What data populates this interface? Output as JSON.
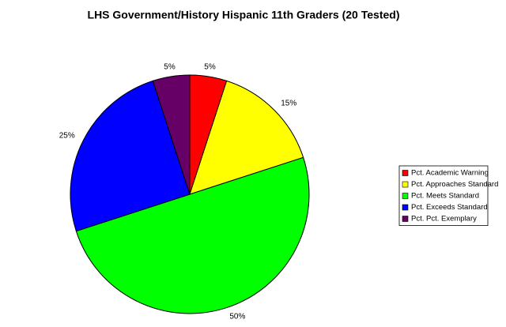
{
  "chart_data": {
    "type": "pie",
    "title": "LHS Government/History Hispanic 11th Graders (20 Tested)",
    "categories": [
      "Pct. Academic Warning",
      "Pct. Approaches Standard",
      "Pct. Meets Standard",
      "Pct. Exceeds Standard",
      "Pct. Pct. Exemplary"
    ],
    "values": [
      5,
      15,
      50,
      25,
      5
    ],
    "value_labels": [
      "5%",
      "15%",
      "50%",
      "25%",
      "5%"
    ],
    "colors": [
      "#ff0000",
      "#ffff00",
      "#00ff00",
      "#0000ff",
      "#660066"
    ],
    "legend": "right"
  }
}
